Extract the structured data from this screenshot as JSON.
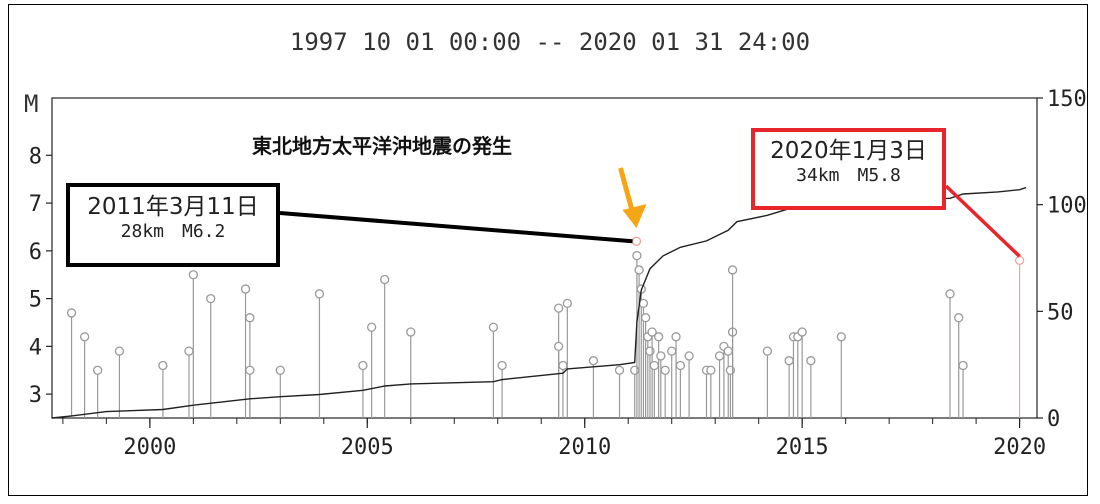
{
  "chart_data": {
    "type": "scatter",
    "title": "1997 10 01 00:00 -- 2020 01 31 24:00",
    "ylabel": "M",
    "xlim": [
      1997.75,
      2020.4
    ],
    "ylim": [
      2.5,
      9.2
    ],
    "y2lim": [
      0,
      150
    ],
    "x_ticks": [
      2000,
      2005,
      2010,
      2015,
      2020
    ],
    "y_ticks": [
      3,
      4,
      5,
      6,
      7,
      8
    ],
    "y2_ticks": [
      0,
      50,
      100,
      150
    ],
    "grid": false,
    "series": [
      {
        "kind": "magnitude-stems",
        "points": [
          {
            "x": 1998.2,
            "y": 4.7
          },
          {
            "x": 1998.5,
            "y": 4.2
          },
          {
            "x": 1998.8,
            "y": 3.5
          },
          {
            "x": 1999.3,
            "y": 3.9
          },
          {
            "x": 2000.3,
            "y": 3.6
          },
          {
            "x": 2000.9,
            "y": 3.9
          },
          {
            "x": 2001.0,
            "y": 5.5
          },
          {
            "x": 2001.4,
            "y": 5.0
          },
          {
            "x": 2002.2,
            "y": 5.2
          },
          {
            "x": 2002.3,
            "y": 4.6
          },
          {
            "x": 2002.3,
            "y": 3.5
          },
          {
            "x": 2003.0,
            "y": 3.5
          },
          {
            "x": 2003.9,
            "y": 5.1
          },
          {
            "x": 2004.9,
            "y": 3.6
          },
          {
            "x": 2005.1,
            "y": 4.4
          },
          {
            "x": 2005.4,
            "y": 5.4
          },
          {
            "x": 2006.0,
            "y": 4.3
          },
          {
            "x": 2007.9,
            "y": 4.4
          },
          {
            "x": 2008.1,
            "y": 3.6
          },
          {
            "x": 2009.4,
            "y": 4.8
          },
          {
            "x": 2009.4,
            "y": 4.0
          },
          {
            "x": 2009.5,
            "y": 3.6
          },
          {
            "x": 2009.6,
            "y": 4.9
          },
          {
            "x": 2010.2,
            "y": 3.7
          },
          {
            "x": 2010.8,
            "y": 3.5
          },
          {
            "x": 2011.15,
            "y": 3.5
          },
          {
            "x": 2011.2,
            "y": 5.9
          },
          {
            "x": 2011.25,
            "y": 5.6
          },
          {
            "x": 2011.3,
            "y": 5.2
          },
          {
            "x": 2011.35,
            "y": 4.9
          },
          {
            "x": 2011.4,
            "y": 4.6
          },
          {
            "x": 2011.45,
            "y": 4.2
          },
          {
            "x": 2011.5,
            "y": 3.9
          },
          {
            "x": 2011.55,
            "y": 4.3
          },
          {
            "x": 2011.6,
            "y": 3.6
          },
          {
            "x": 2011.7,
            "y": 4.2
          },
          {
            "x": 2011.75,
            "y": 3.8
          },
          {
            "x": 2011.85,
            "y": 3.5
          },
          {
            "x": 2012.0,
            "y": 3.9
          },
          {
            "x": 2012.1,
            "y": 4.2
          },
          {
            "x": 2012.2,
            "y": 3.6
          },
          {
            "x": 2012.4,
            "y": 3.8
          },
          {
            "x": 2012.8,
            "y": 3.5
          },
          {
            "x": 2012.9,
            "y": 3.5
          },
          {
            "x": 2013.1,
            "y": 3.8
          },
          {
            "x": 2013.2,
            "y": 4.0
          },
          {
            "x": 2013.3,
            "y": 3.9
          },
          {
            "x": 2013.35,
            "y": 3.5
          },
          {
            "x": 2013.4,
            "y": 4.3
          },
          {
            "x": 2013.4,
            "y": 5.6
          },
          {
            "x": 2014.2,
            "y": 3.9
          },
          {
            "x": 2014.7,
            "y": 3.7
          },
          {
            "x": 2014.8,
            "y": 4.2
          },
          {
            "x": 2014.9,
            "y": 4.2
          },
          {
            "x": 2015.0,
            "y": 4.3
          },
          {
            "x": 2015.2,
            "y": 3.7
          },
          {
            "x": 2015.9,
            "y": 4.2
          },
          {
            "x": 2018.4,
            "y": 5.1
          },
          {
            "x": 2018.6,
            "y": 4.6
          },
          {
            "x": 2018.7,
            "y": 3.6
          },
          {
            "x": 2020.0,
            "y": 5.8,
            "highlight": true
          },
          {
            "x": 2011.19,
            "y": 6.2,
            "highlight": true
          }
        ]
      },
      {
        "kind": "cumulative-count",
        "axis": "right",
        "points": [
          [
            1997.75,
            0
          ],
          [
            1998.2,
            1
          ],
          [
            1999.0,
            3
          ],
          [
            2000.3,
            4
          ],
          [
            2001.0,
            6
          ],
          [
            2002.3,
            9
          ],
          [
            2003.0,
            10
          ],
          [
            2003.9,
            11
          ],
          [
            2004.9,
            13
          ],
          [
            2005.4,
            15
          ],
          [
            2006.0,
            16
          ],
          [
            2007.9,
            17
          ],
          [
            2008.1,
            18
          ],
          [
            2009.5,
            21
          ],
          [
            2009.6,
            23
          ],
          [
            2010.2,
            24
          ],
          [
            2010.8,
            25
          ],
          [
            2011.15,
            26
          ],
          [
            2011.2,
            45
          ],
          [
            2011.3,
            60
          ],
          [
            2011.5,
            70
          ],
          [
            2011.8,
            76
          ],
          [
            2012.2,
            80
          ],
          [
            2012.8,
            83
          ],
          [
            2013.3,
            88
          ],
          [
            2013.5,
            92
          ],
          [
            2014.2,
            95
          ],
          [
            2015.0,
            100
          ],
          [
            2015.9,
            101
          ],
          [
            2017.0,
            102
          ],
          [
            2018.4,
            103
          ],
          [
            2018.7,
            105
          ],
          [
            2019.5,
            106
          ],
          [
            2020.0,
            107
          ],
          [
            2020.15,
            108
          ]
        ]
      }
    ]
  },
  "event_label": "東北地方太平洋沖地震の発生",
  "annotations": {
    "tohoku_2011": {
      "date": "2011年3月11日",
      "detail": "28km　M6.2",
      "x": 2011.19,
      "y": 6.2
    },
    "event_2020": {
      "date": "2020年1月3日",
      "detail": "34km　M5.8",
      "x": 2020.0,
      "y": 5.8
    }
  },
  "colors": {
    "stem": "#999999",
    "axis": "#222222",
    "cumulative": "#222222",
    "highlight_red": "#e8252b",
    "arrow_orange": "#f5a614",
    "marker_pink": "#f2a0a0"
  }
}
